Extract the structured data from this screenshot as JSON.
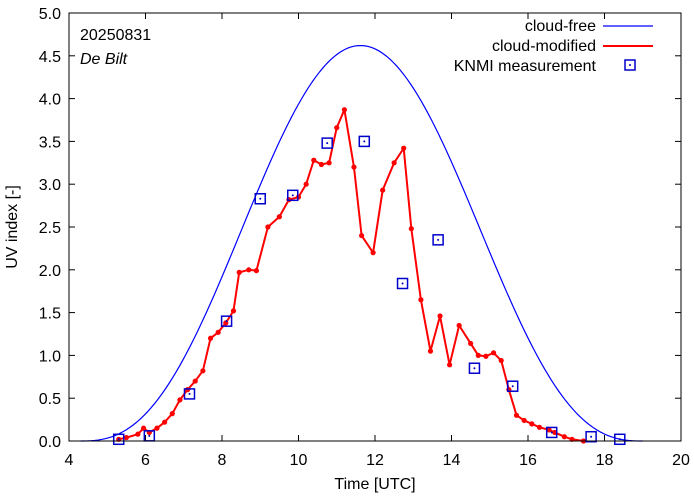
{
  "chart_data": {
    "type": "line",
    "date": "20250831",
    "location": "De Bilt",
    "xlabel": "Time  [UTC]",
    "ylabel": "UV index  [-]",
    "xlim": [
      4,
      20
    ],
    "ylim": [
      0,
      5
    ],
    "xticks": [
      4,
      6,
      8,
      10,
      12,
      14,
      16,
      18,
      20
    ],
    "xtick_labels": [
      "4",
      "6",
      "8",
      "10",
      "12",
      "14",
      "16",
      "18",
      "20"
    ],
    "yticks": [
      0,
      0.5,
      1,
      1.5,
      2,
      2.5,
      3,
      3.5,
      4,
      4.5,
      5
    ],
    "ytick_labels": [
      "0.0",
      "0.5",
      "1.0",
      "1.5",
      "2.0",
      "2.5",
      "3.0",
      "3.5",
      "4.0",
      "4.5",
      "5.0"
    ],
    "legend_position": "top-right",
    "series": [
      {
        "name": "cloud-free",
        "style": "line",
        "color": "#0000ff",
        "model": {
          "t_start": 4.3,
          "t_end": 19.0,
          "peak_time": 11.62,
          "peak_value": 4.62
        }
      },
      {
        "name": "cloud-modified",
        "style": "line-points",
        "color": "#ff0000",
        "x": [
          5.3,
          5.5,
          5.8,
          5.95,
          6.1,
          6.3,
          6.5,
          6.7,
          6.9,
          7.1,
          7.3,
          7.5,
          7.7,
          7.9,
          8.1,
          8.3,
          8.45,
          8.7,
          8.9,
          9.2,
          9.5,
          9.75,
          10.0,
          10.2,
          10.4,
          10.6,
          10.8,
          11.0,
          11.2,
          11.45,
          11.65,
          11.95,
          12.2,
          12.5,
          12.75,
          12.95,
          13.2,
          13.45,
          13.7,
          13.95,
          14.2,
          14.5,
          14.7,
          14.9,
          15.1,
          15.3,
          15.5,
          15.7,
          15.9,
          16.1,
          16.3,
          16.55,
          16.7,
          16.95,
          17.15,
          17.45
        ],
        "values": [
          0.02,
          0.04,
          0.08,
          0.15,
          0.1,
          0.15,
          0.22,
          0.32,
          0.48,
          0.6,
          0.7,
          0.82,
          1.2,
          1.27,
          1.38,
          1.52,
          1.97,
          2.0,
          1.99,
          2.5,
          2.62,
          2.82,
          2.85,
          3.0,
          3.28,
          3.23,
          3.25,
          3.66,
          3.87,
          3.2,
          2.4,
          2.2,
          2.93,
          3.25,
          3.42,
          2.48,
          1.65,
          1.05,
          1.46,
          0.89,
          1.35,
          1.14,
          1.0,
          0.99,
          1.03,
          0.94,
          0.6,
          0.3,
          0.24,
          0.2,
          0.16,
          0.13,
          0.1,
          0.05,
          0.02,
          0.0
        ]
      },
      {
        "name": "KNMI measurement",
        "style": "points",
        "color": "#0000cc",
        "x": [
          5.3,
          6.1,
          7.15,
          8.12,
          9.0,
          9.85,
          10.75,
          11.72,
          12.72,
          13.65,
          14.6,
          15.6,
          16.62,
          17.65,
          18.4
        ],
        "values": [
          0.02,
          0.06,
          0.55,
          1.4,
          2.83,
          2.87,
          3.48,
          3.5,
          1.84,
          2.35,
          0.85,
          0.64,
          0.1,
          0.05,
          0.02
        ]
      }
    ]
  }
}
